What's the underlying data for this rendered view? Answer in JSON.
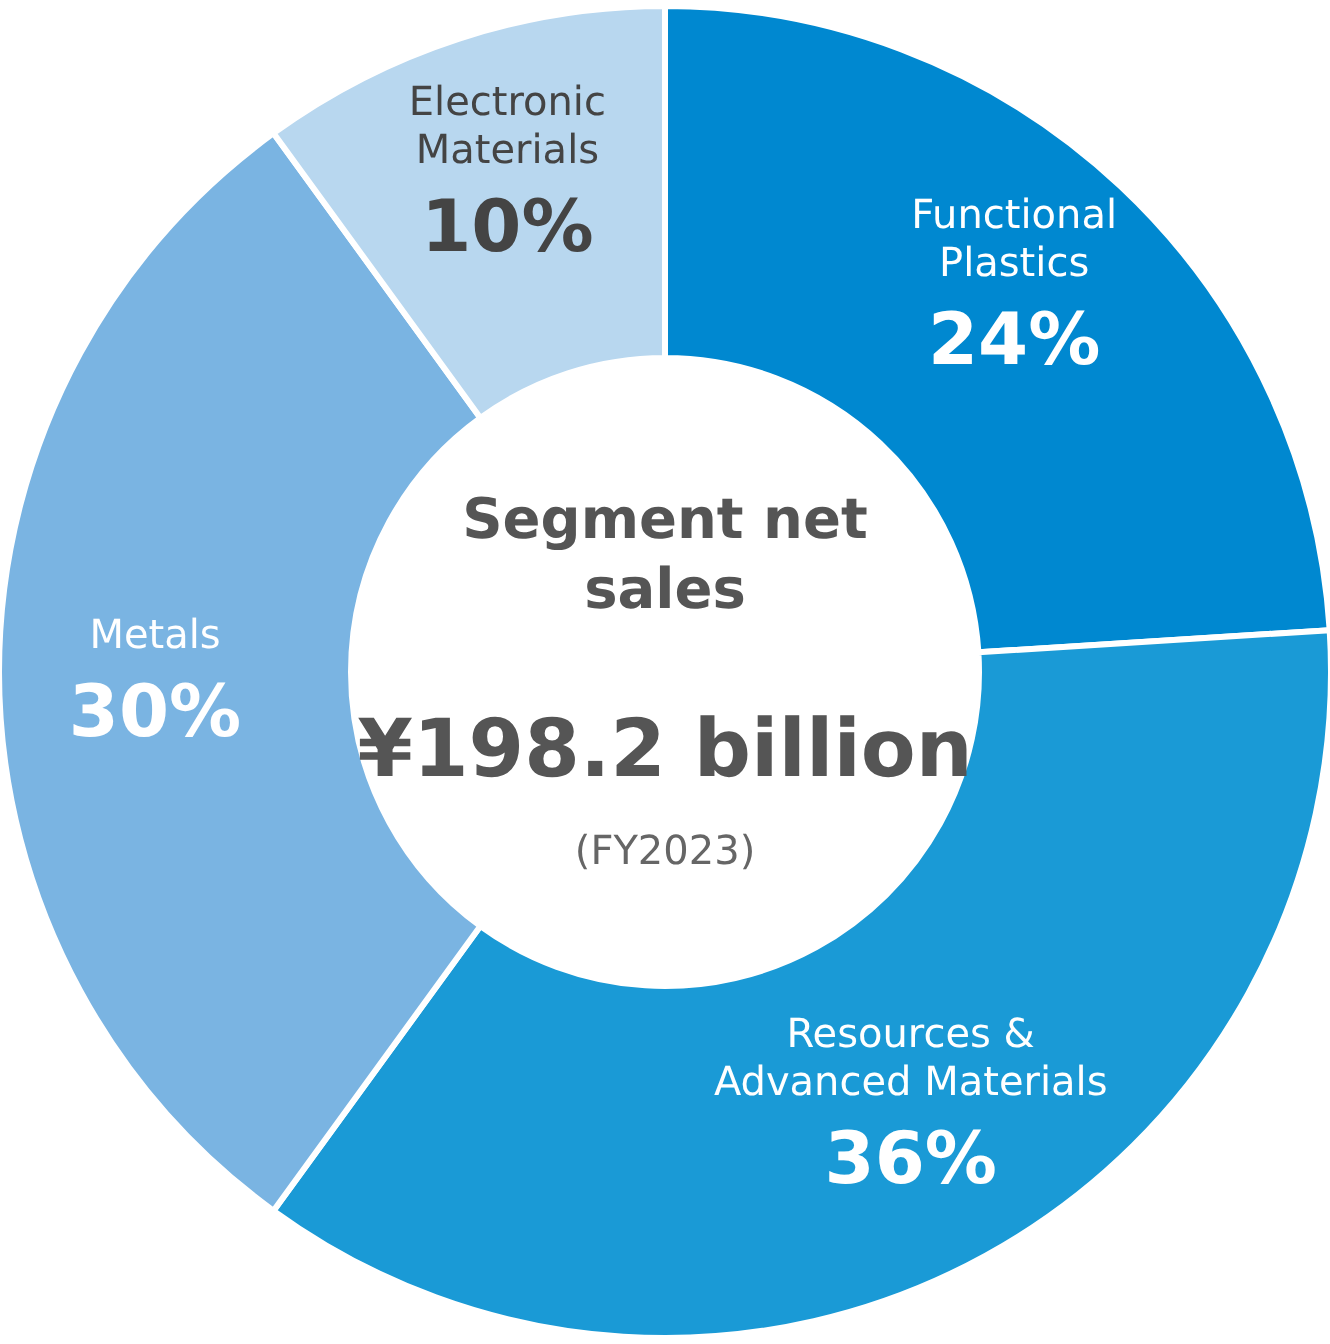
{
  "chart_data": {
    "type": "donut",
    "title": "Segment net sales",
    "subtitle": "¥198.2 billion",
    "annotations": [
      "(FY2023)"
    ],
    "categories": [
      "Functional Plastics",
      "Resources & Advanced Materials",
      "Metals",
      "Electronic Materials"
    ],
    "values": [
      24,
      36,
      30,
      10
    ],
    "value_labels": [
      "24%",
      "36%",
      "30%",
      "10%"
    ],
    "colors": [
      "#0088d0",
      "#1a9ad6",
      "#7ab4e2",
      "#b8d7ef"
    ]
  }
}
